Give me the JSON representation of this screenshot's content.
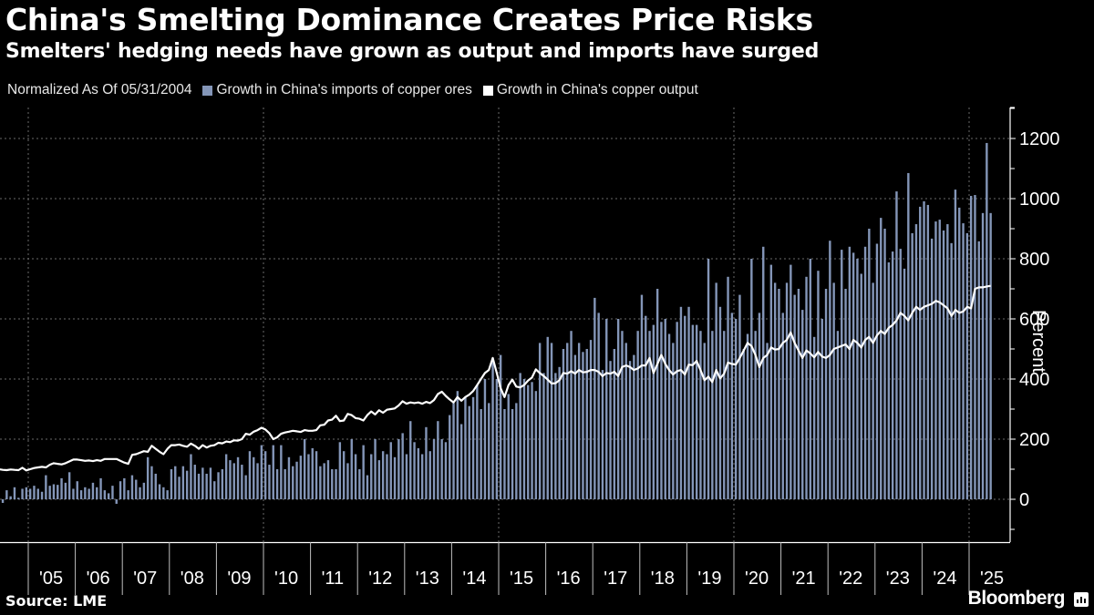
{
  "header": {
    "title": "China's Smelting Dominance Creates Price Risks",
    "subtitle": "Smelters' hedging needs have grown as output and imports have surged"
  },
  "legend": {
    "note": "Normalized As Of 05/31/2004",
    "items": [
      {
        "label": "Growth in China's imports of copper ores",
        "color": "#8496b8"
      },
      {
        "label": "Growth in China's copper output",
        "color": "#ffffff"
      }
    ]
  },
  "footer": {
    "source": "Source: LME",
    "brand": "Bloomberg"
  },
  "chart_data": {
    "type": "bar+line",
    "title": "China's Smelting Dominance Creates Price Risks",
    "subtitle": "Smelters' hedging needs have grown as output and imports have surged",
    "xlabel": "",
    "ylabel": "Percent",
    "ylim": [
      -140,
      1300
    ],
    "yticks": [
      0,
      200,
      400,
      600,
      800,
      1000,
      1200
    ],
    "grid": true,
    "legend_position": "top-left",
    "x_start": "2004-05",
    "x_end": "2025-06",
    "frequency": "monthly",
    "xtick_labels": [
      "'05",
      "'06",
      "'07",
      "'08",
      "'09",
      "'10",
      "'11",
      "'12",
      "'13",
      "'14",
      "'15",
      "'16",
      "'17",
      "'18",
      "'19",
      "'20",
      "'21",
      "'22",
      "'23",
      "'24",
      "'25"
    ],
    "series": [
      {
        "name": "Growth in China's imports of copper ores",
        "type": "bar",
        "color": "#8496b8",
        "values": [
          0,
          -12,
          30,
          10,
          40,
          5,
          35,
          40,
          35,
          45,
          35,
          25,
          80,
          45,
          50,
          48,
          70,
          55,
          90,
          35,
          60,
          30,
          40,
          35,
          55,
          40,
          70,
          30,
          20,
          45,
          -15,
          60,
          70,
          30,
          80,
          65,
          40,
          55,
          140,
          110,
          85,
          50,
          40,
          30,
          100,
          110,
          75,
          110,
          95,
          150,
          115,
          85,
          105,
          85,
          105,
          60,
          90,
          100,
          150,
          130,
          120,
          140,
          115,
          80,
          160,
          140,
          120,
          180,
          160,
          115,
          180,
          100,
          180,
          100,
          140,
          110,
          125,
          145,
          200,
          150,
          170,
          160,
          110,
          120,
          130,
          100,
          100,
          190,
          160,
          120,
          200,
          150,
          100,
          180,
          80,
          150,
          200,
          130,
          160,
          150,
          190,
          140,
          200,
          220,
          150,
          260,
          190,
          170,
          150,
          240,
          160,
          200,
          260,
          200,
          190,
          280,
          320,
          360,
          250,
          340,
          310,
          340,
          380,
          300,
          400,
          320,
          470,
          400,
          480,
          300,
          350,
          300,
          320,
          420,
          400,
          380,
          390,
          360,
          520,
          420,
          540,
          520,
          420,
          440,
          500,
          520,
          560,
          480,
          520,
          490,
          500,
          530,
          670,
          620,
          430,
          600,
          460,
          500,
          600,
          560,
          520,
          460,
          480,
          560,
          680,
          610,
          560,
          580,
          700,
          590,
          600,
          550,
          520,
          590,
          640,
          610,
          640,
          580,
          580,
          560,
          520,
          800,
          560,
          720,
          640,
          560,
          740,
          620,
          600,
          680,
          500,
          550,
          800,
          560,
          620,
          840,
          520,
          780,
          720,
          700,
          620,
          720,
          780,
          680,
          700,
          630,
          740,
          800,
          540,
          760,
          600,
          700,
          860,
          720,
          560,
          830,
          700,
          840,
          820,
          800,
          750,
          840,
          900,
          720,
          850,
          936,
          900,
          788,
          824,
          1024,
          833,
          767,
          1085,
          885,
          915,
          973,
          991,
          979,
          867,
          924,
          930,
          894,
          915,
          852,
          1030,
          970,
          918,
          885,
          1009,
          1012,
          858,
          952,
          1185,
          952
        ]
      },
      {
        "name": "Growth in China's copper output",
        "type": "line",
        "color": "#ffffff",
        "values": [
          100,
          98,
          97,
          99,
          98,
          97,
          105,
          96,
          100,
          104,
          106,
          108,
          106,
          115,
          120,
          118,
          116,
          120,
          126,
          132,
          132,
          130,
          128,
          129,
          127,
          130,
          128,
          134,
          134,
          134,
          134,
          128,
          122,
          118,
          148,
          150,
          155,
          160,
          158,
          178,
          168,
          158,
          150,
          168,
          180,
          180,
          182,
          178,
          175,
          185,
          178,
          168,
          180,
          172,
          178,
          180,
          188,
          186,
          192,
          190,
          196,
          195,
          200,
          218,
          215,
          225,
          230,
          238,
          232,
          220,
          200,
          206,
          218,
          222,
          225,
          228,
          226,
          224,
          230,
          228,
          228,
          230,
          246,
          248,
          262,
          265,
          278,
          260,
          262,
          284,
          280,
          270,
          268,
          262,
          280,
          292,
          282,
          296,
          288,
          298,
          300,
          302,
          312,
          326,
          318,
          322,
          320,
          322,
          318,
          324,
          320,
          330,
          350,
          358,
          344,
          332,
          322,
          340,
          328,
          340,
          348,
          360,
          380,
          400,
          420,
          430,
          470,
          420,
          370,
          340,
          380,
          398,
          375,
          372,
          380,
          395,
          405,
          432,
          420,
          410,
          398,
          385,
          386,
          396,
          420,
          418,
          426,
          418,
          430,
          422,
          424,
          430,
          430,
          424,
          410,
          420,
          418,
          424,
          410,
          440,
          445,
          440,
          430,
          435,
          445,
          445,
          470,
          420,
          450,
          480,
          450,
          430,
          415,
          426,
          430,
          415,
          448,
          446,
          460,
          430,
          396,
          408,
          390,
          430,
          402,
          418,
          455,
          450,
          448,
          470,
          495,
          520,
          510,
          480,
          440,
          470,
          480,
          505,
          498,
          500,
          520,
          530,
          555,
          520,
          495,
          470,
          495,
          485,
          472,
          490,
          475,
          470,
          480,
          500,
          505,
          510,
          515,
          500,
          530,
          520,
          505,
          530,
          540,
          520,
          545,
          560,
          550,
          570,
          580,
          595,
          620,
          610,
          595,
          620,
          640,
          630,
          640,
          645,
          650,
          660,
          655,
          645,
          635,
          610,
          630,
          620,
          625,
          640,
          635,
          700,
          705,
          705,
          708,
          710
        ]
      }
    ]
  }
}
